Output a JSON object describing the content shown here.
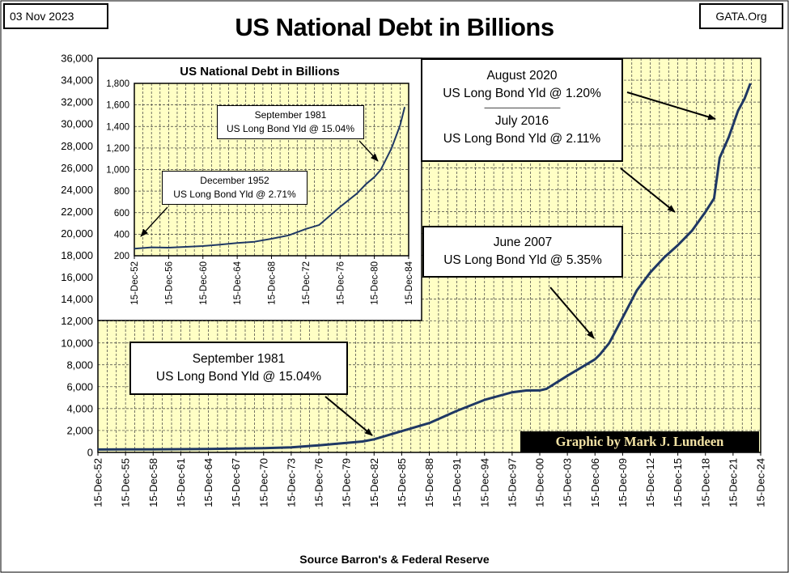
{
  "header": {
    "date": "03 Nov 2023",
    "title": "US National Debt in Billions",
    "source_tag": "GATA.Org"
  },
  "footer": {
    "source": "Source Barron's & Federal Reserve"
  },
  "credit": "Graphic by Mark J. Lundeen",
  "colors": {
    "plot_bg": "#ffffc5",
    "grid": "#3a3a3a",
    "line": "#1f3864"
  },
  "chart_data": [
    {
      "type": "line",
      "title": "US National Debt in Billions",
      "ylim": [
        0,
        36000
      ],
      "y_ticks": [
        0,
        2000,
        4000,
        6000,
        8000,
        10000,
        12000,
        14000,
        16000,
        18000,
        20000,
        22000,
        24000,
        26000,
        28000,
        30000,
        32000,
        34000,
        36000
      ],
      "y_tick_labels": [
        "0",
        "2,000",
        "4,000",
        "6,000",
        "8,000",
        "10,000",
        "12,000",
        "14,000",
        "16,000",
        "18,000",
        "20,000",
        "22,000",
        "24,000",
        "26,000",
        "28,000",
        "30,000",
        "32,000",
        "34,000",
        "36,000"
      ],
      "x_range": [
        1952.96,
        2024.96
      ],
      "x_tick_labels": [
        "15-Dec-52",
        "15-Dec-55",
        "15-Dec-58",
        "15-Dec-61",
        "15-Dec-64",
        "15-Dec-67",
        "15-Dec-70",
        "15-Dec-73",
        "15-Dec-76",
        "15-Dec-79",
        "15-Dec-82",
        "15-Dec-85",
        "15-Dec-88",
        "15-Dec-91",
        "15-Dec-94",
        "15-Dec-97",
        "15-Dec-00",
        "15-Dec-03",
        "15-Dec-06",
        "15-Dec-09",
        "15-Dec-12",
        "15-Dec-15",
        "15-Dec-18",
        "15-Dec-21",
        "15-Dec-24"
      ],
      "grid": true,
      "series": [
        {
          "x": [
            1952.96,
            1955.96,
            1958.96,
            1961.96,
            1964.96,
            1967.96,
            1970.96,
            1973.96,
            1976.96,
            1979.96,
            1981.7,
            1982.96,
            1985.96,
            1988.96,
            1991.96,
            1994.96,
            1997.96,
            1999.5,
            2000.96,
            2001.7,
            2003.96,
            2006.96,
            2007.5,
            2008.5,
            2009.96,
            2011.5,
            2012.96,
            2014.5,
            2015.96,
            2017.5,
            2018.96,
            2019.9,
            2020.5,
            2021.5,
            2022.5,
            2023.2,
            2023.84
          ],
          "y": [
            266,
            274,
            283,
            297,
            318,
            345,
            389,
            467,
            654,
            863,
            998,
            1197,
            1945,
            2684,
            3801,
            4801,
            5494,
            5656,
            5662,
            5807,
            6998,
            8507,
            8951,
            9985,
            12311,
            14790,
            16433,
            17824,
            18922,
            20245,
            21974,
            23200,
            26900,
            28800,
            31200,
            32300,
            33710
          ]
        }
      ],
      "annotations": [
        {
          "line1": "September 1981",
          "line2": "US Long Bond Yld @ 15.04%"
        },
        {
          "line1": "June 2007",
          "line2": "US Long Bond Yld @ 5.35%"
        },
        {
          "line1": "August 2020",
          "line2": "US Long Bond Yld @ 1.20%",
          "separator": "-----------------------------------------------",
          "line3": "July 2016",
          "line4": "US Long Bond Yld @ 2.11%"
        }
      ]
    },
    {
      "type": "line",
      "title": "US National Debt in Billions",
      "ylim": [
        200,
        1800
      ],
      "y_ticks": [
        200,
        400,
        600,
        800,
        1000,
        1200,
        1400,
        1600,
        1800
      ],
      "y_tick_labels": [
        "200",
        "400",
        "600",
        "800",
        "1,000",
        "1,200",
        "1,400",
        "1,600",
        "1,800"
      ],
      "x_range": [
        1952.96,
        1984.96
      ],
      "x_tick_labels": [
        "15-Dec-52",
        "15-Dec-56",
        "15-Dec-60",
        "15-Dec-64",
        "15-Dec-68",
        "15-Dec-72",
        "15-Dec-76",
        "15-Dec-80",
        "15-Dec-84"
      ],
      "grid": true,
      "series": [
        {
          "x": [
            1952.96,
            1954.96,
            1956.96,
            1958.96,
            1960.96,
            1962.96,
            1964.96,
            1966.96,
            1968.96,
            1970.96,
            1972.96,
            1974.5,
            1976.96,
            1978.96,
            1979.96,
            1980.96,
            1981.7,
            1982.96,
            1983.96,
            1984.5
          ],
          "y": [
            266,
            278,
            275,
            283,
            290,
            303,
            318,
            330,
            358,
            389,
            449,
            485,
            654,
            780,
            863,
            930,
            998,
            1197,
            1410,
            1580
          ]
        }
      ],
      "annotations": [
        {
          "line1": "December 1952",
          "line2": "US Long Bond Yld @ 2.71%"
        },
        {
          "line1": "September 1981",
          "line2": "US Long Bond Yld @ 15.04%"
        }
      ]
    }
  ]
}
